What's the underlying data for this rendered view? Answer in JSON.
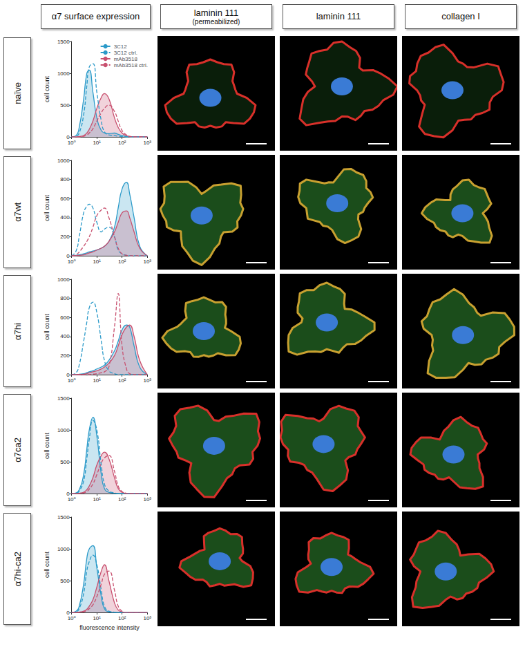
{
  "column_headers": [
    {
      "title": "α7 surface expression"
    },
    {
      "title": "laminin 111",
      "subtitle": "(permeabilized)"
    },
    {
      "title": "laminin 111"
    },
    {
      "title": "collagen I"
    }
  ],
  "row_labels": [
    "naïve",
    "α7wt",
    "α7hi",
    "α7ca2",
    "α7hi-ca2"
  ],
  "chart_data": [
    {
      "type": "line",
      "log": "x",
      "grid": false,
      "legend": "upper right",
      "ylabel": "cell count",
      "x": [
        1,
        1.5,
        2,
        3,
        4,
        5,
        7,
        10,
        15,
        20,
        30,
        50,
        70,
        100,
        150,
        200,
        300,
        500,
        1000
      ],
      "xlim": [
        1,
        1000
      ],
      "xticks": [
        {
          "value": 1,
          "label": "10⁰"
        },
        {
          "value": 10,
          "label": "10¹"
        },
        {
          "value": 100,
          "label": "10²"
        },
        {
          "value": 1000,
          "label": "10³"
        }
      ],
      "ylim": [
        0,
        1500
      ],
      "yticks": [
        0,
        500,
        1000,
        1500
      ],
      "series": [
        {
          "name": "3C12",
          "color": "#2b9ac9",
          "line_style": "solid",
          "values": [
            0,
            20,
            150,
            600,
            1000,
            1050,
            700,
            300,
            100,
            60,
            50,
            60,
            40,
            20,
            5,
            0,
            0,
            0,
            0
          ]
        },
        {
          "name": "3C12 ctrl.",
          "color": "#2b9ac9",
          "line_style": "dashed",
          "values": [
            0,
            10,
            60,
            350,
            800,
            1100,
            1150,
            700,
            250,
            80,
            30,
            20,
            10,
            5,
            0,
            0,
            0,
            0,
            0
          ]
        },
        {
          "name": "mAb3518",
          "color": "#c8506f",
          "line_style": "solid",
          "values": [
            0,
            0,
            5,
            20,
            60,
            120,
            250,
            450,
            620,
            680,
            600,
            300,
            150,
            60,
            20,
            5,
            0,
            0,
            0
          ]
        },
        {
          "name": "mAb3518 ctrl.",
          "color": "#c8506f",
          "line_style": "dashed",
          "values": [
            0,
            0,
            0,
            10,
            30,
            60,
            130,
            250,
            380,
            450,
            500,
            400,
            250,
            100,
            30,
            10,
            0,
            0,
            0
          ]
        }
      ]
    },
    {
      "type": "line",
      "log": "x",
      "grid": false,
      "ylabel": "cell count",
      "x": [
        1,
        1.5,
        2,
        3,
        4,
        5,
        7,
        10,
        15,
        20,
        30,
        50,
        70,
        100,
        150,
        200,
        300,
        500,
        1000
      ],
      "xlim": [
        1,
        1000
      ],
      "xticks": [
        {
          "value": 1,
          "label": "10⁰"
        },
        {
          "value": 10,
          "label": "10¹"
        },
        {
          "value": 100,
          "label": "10²"
        },
        {
          "value": 1000,
          "label": "10³"
        }
      ],
      "ylim": [
        0,
        1000
      ],
      "yticks": [
        0,
        200,
        400,
        600,
        800,
        1000
      ],
      "series": [
        {
          "name": "3C12",
          "color": "#2b9ac9",
          "line_style": "solid",
          "values": [
            0,
            5,
            10,
            20,
            30,
            40,
            50,
            60,
            80,
            100,
            150,
            300,
            500,
            700,
            770,
            650,
            400,
            100,
            0
          ]
        },
        {
          "name": "3C12 ctrl.",
          "color": "#2b9ac9",
          "line_style": "dashed",
          "values": [
            0,
            50,
            200,
            450,
            520,
            540,
            500,
            350,
            250,
            280,
            300,
            200,
            60,
            20,
            5,
            0,
            0,
            0,
            0
          ]
        },
        {
          "name": "mAb3518",
          "color": "#c8506f",
          "line_style": "solid",
          "values": [
            0,
            0,
            5,
            10,
            20,
            30,
            40,
            60,
            80,
            100,
            150,
            250,
            350,
            450,
            470,
            400,
            250,
            80,
            0
          ]
        },
        {
          "name": "mAb3518 ctrl.",
          "color": "#c8506f",
          "line_style": "dashed",
          "values": [
            0,
            10,
            40,
            100,
            150,
            200,
            300,
            420,
            480,
            500,
            400,
            200,
            80,
            20,
            5,
            0,
            0,
            0,
            0
          ]
        }
      ]
    },
    {
      "type": "line",
      "log": "x",
      "grid": false,
      "ylabel": "cell count",
      "x": [
        1,
        1.5,
        2,
        3,
        4,
        5,
        7,
        10,
        15,
        20,
        30,
        50,
        70,
        100,
        150,
        200,
        300,
        500,
        1000
      ],
      "xlim": [
        1,
        1000
      ],
      "xticks": [
        {
          "value": 1,
          "label": "10⁰"
        },
        {
          "value": 10,
          "label": "10¹"
        },
        {
          "value": 100,
          "label": "10²"
        },
        {
          "value": 1000,
          "label": "10³"
        }
      ],
      "ylim": [
        0,
        1000
      ],
      "yticks": [
        0,
        200,
        400,
        600,
        800,
        1000
      ],
      "series": [
        {
          "name": "3C12",
          "color": "#2b9ac9",
          "line_style": "solid",
          "values": [
            0,
            0,
            5,
            10,
            20,
            30,
            40,
            60,
            80,
            100,
            150,
            250,
            350,
            470,
            520,
            500,
            300,
            80,
            0
          ]
        },
        {
          "name": "3C12 ctrl.",
          "color": "#2b9ac9",
          "line_style": "dashed",
          "values": [
            0,
            20,
            100,
            350,
            550,
            700,
            760,
            650,
            350,
            150,
            40,
            10,
            0,
            0,
            0,
            0,
            0,
            0,
            0
          ]
        },
        {
          "name": "mAb3518",
          "color": "#c8506f",
          "line_style": "solid",
          "values": [
            0,
            0,
            0,
            5,
            10,
            20,
            30,
            40,
            60,
            80,
            120,
            200,
            300,
            420,
            500,
            520,
            400,
            150,
            0
          ]
        },
        {
          "name": "mAb3518 ctrl.",
          "color": "#c8506f",
          "line_style": "dashed",
          "values": [
            0,
            0,
            0,
            0,
            0,
            0,
            5,
            10,
            20,
            30,
            80,
            500,
            850,
            300,
            60,
            10,
            0,
            0,
            0
          ]
        }
      ]
    },
    {
      "type": "line",
      "log": "x",
      "grid": false,
      "ylabel": "cell count",
      "x": [
        1,
        1.5,
        2,
        3,
        4,
        5,
        7,
        10,
        15,
        20,
        30,
        50,
        70,
        100,
        150,
        200,
        300,
        500,
        1000
      ],
      "xlim": [
        1,
        1000
      ],
      "xticks": [
        {
          "value": 1,
          "label": "10⁰"
        },
        {
          "value": 10,
          "label": "10¹"
        },
        {
          "value": 100,
          "label": "10²"
        },
        {
          "value": 1000,
          "label": "10³"
        }
      ],
      "ylim": [
        0,
        1500
      ],
      "yticks": [
        0,
        500,
        1000,
        1500
      ],
      "series": [
        {
          "name": "3C12",
          "color": "#2b9ac9",
          "line_style": "solid",
          "values": [
            0,
            10,
            60,
            300,
            700,
            1000,
            1200,
            900,
            300,
            80,
            20,
            5,
            0,
            0,
            0,
            0,
            0,
            0,
            0
          ]
        },
        {
          "name": "3C12 ctrl.",
          "color": "#2b9ac9",
          "line_style": "dashed",
          "values": [
            0,
            5,
            40,
            200,
            550,
            850,
            1150,
            1000,
            450,
            150,
            40,
            10,
            0,
            0,
            0,
            0,
            0,
            0,
            0
          ]
        },
        {
          "name": "mAb3518",
          "color": "#c8506f",
          "line_style": "solid",
          "values": [
            0,
            0,
            5,
            20,
            60,
            120,
            250,
            450,
            600,
            650,
            550,
            250,
            80,
            20,
            0,
            0,
            0,
            0,
            0
          ]
        },
        {
          "name": "mAb3518 ctrl.",
          "color": "#c8506f",
          "line_style": "dashed",
          "values": [
            0,
            0,
            0,
            10,
            30,
            70,
            150,
            300,
            480,
            560,
            600,
            350,
            120,
            30,
            5,
            0,
            0,
            0,
            0
          ]
        }
      ]
    },
    {
      "type": "line",
      "log": "x",
      "grid": false,
      "ylabel": "cell count",
      "xlabel": "fluorescence intensity",
      "x": [
        1,
        1.5,
        2,
        3,
        4,
        5,
        7,
        10,
        15,
        20,
        30,
        50,
        70,
        100,
        150,
        200,
        300,
        500,
        1000
      ],
      "xlim": [
        1,
        1000
      ],
      "xticks": [
        {
          "value": 1,
          "label": "10⁰"
        },
        {
          "value": 10,
          "label": "10¹"
        },
        {
          "value": 100,
          "label": "10²"
        },
        {
          "value": 1000,
          "label": "10³"
        }
      ],
      "ylim": [
        0,
        1500
      ],
      "yticks": [
        0,
        500,
        1000,
        1500
      ],
      "series": [
        {
          "name": "3C12",
          "color": "#2b9ac9",
          "line_style": "solid",
          "values": [
            0,
            20,
            100,
            450,
            850,
            1000,
            1050,
            700,
            250,
            60,
            10,
            0,
            0,
            0,
            0,
            0,
            0,
            0,
            0
          ]
        },
        {
          "name": "3C12 ctrl.",
          "color": "#2b9ac9",
          "line_style": "dashed",
          "values": [
            0,
            10,
            60,
            300,
            650,
            800,
            900,
            750,
            350,
            100,
            20,
            5,
            0,
            0,
            0,
            0,
            0,
            0,
            0
          ]
        },
        {
          "name": "mAb3518",
          "color": "#c8506f",
          "line_style": "solid",
          "values": [
            0,
            0,
            5,
            20,
            50,
            100,
            200,
            400,
            650,
            750,
            500,
            150,
            40,
            10,
            0,
            0,
            0,
            0,
            0
          ]
        },
        {
          "name": "mAb3518 ctrl.",
          "color": "#c8506f",
          "line_style": "dashed",
          "values": [
            0,
            0,
            0,
            10,
            30,
            60,
            120,
            250,
            450,
            600,
            650,
            350,
            100,
            20,
            0,
            0,
            0,
            0,
            0
          ]
        }
      ]
    }
  ]
}
